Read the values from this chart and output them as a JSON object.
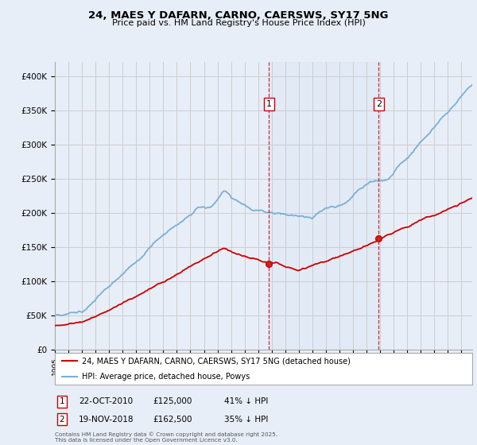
{
  "title": "24, MAES Y DAFARN, CARNO, CAERSWS, SY17 5NG",
  "subtitle": "Price paid vs. HM Land Registry's House Price Index (HPI)",
  "ylim": [
    0,
    420000
  ],
  "yticks": [
    0,
    50000,
    100000,
    150000,
    200000,
    250000,
    300000,
    350000,
    400000
  ],
  "ytick_labels": [
    "£0",
    "£50K",
    "£100K",
    "£150K",
    "£200K",
    "£250K",
    "£300K",
    "£350K",
    "£400K"
  ],
  "xlim_start": 1995,
  "xlim_end": 2025.8,
  "background_color": "#e8eef8",
  "grid_color": "#cccccc",
  "sale1_date": 2010.81,
  "sale1_price": 125000,
  "sale2_date": 2018.89,
  "sale2_price": 162500,
  "line_red_color": "#cc0000",
  "line_blue_color": "#7bafd4",
  "marker_color": "#cc0000",
  "legend_house_label": "24, MAES Y DAFARN, CARNO, CAERSWS, SY17 5NG (detached house)",
  "legend_hpi_label": "HPI: Average price, detached house, Powys",
  "sale1_info_date": "22-OCT-2010",
  "sale1_info_price": "£125,000",
  "sale1_info_hpi": "41% ↓ HPI",
  "sale2_info_date": "19-NOV-2018",
  "sale2_info_price": "£162,500",
  "sale2_info_hpi": "35% ↓ HPI",
  "footnote": "Contains HM Land Registry data © Crown copyright and database right 2025.\nThis data is licensed under the Open Government Licence v3.0.",
  "vline_color": "#cc0000",
  "shade_color": "#c8d8f0",
  "box_edge_color": "#cc0000"
}
